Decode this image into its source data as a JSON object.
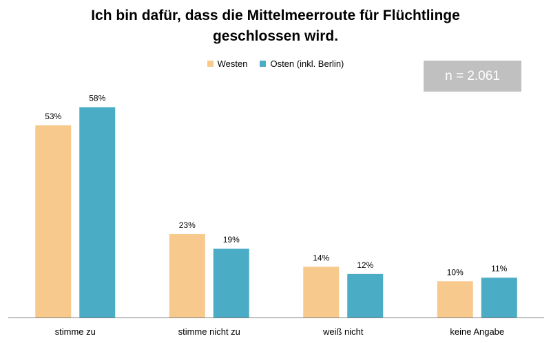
{
  "chart_data": {
    "type": "bar",
    "title": "Ich bin dafür, dass die Mittelmeerroute für Flüchtlinge\ngeschlossen wird.",
    "categories": [
      "stimme zu",
      "stimme nicht zu",
      "weiß nicht",
      "keine Angabe"
    ],
    "series": [
      {
        "name": "Westen",
        "values": [
          53,
          23,
          14,
          10
        ],
        "labels": [
          "53%",
          "23%",
          "14%",
          "10%"
        ],
        "color": "#F8C98C"
      },
      {
        "name": "Osten (inkl. Berlin)",
        "values": [
          58,
          19,
          12,
          11
        ],
        "labels": [
          "58%",
          "19%",
          "12%",
          "11%"
        ],
        "color": "#4BACC6"
      }
    ],
    "ylim": [
      0,
      60
    ],
    "grid": false,
    "legend_position": "top-center",
    "annotation": "n = 2.061",
    "annotation_color": "#C0C0C0",
    "axis_color": "#7F7F7F"
  }
}
